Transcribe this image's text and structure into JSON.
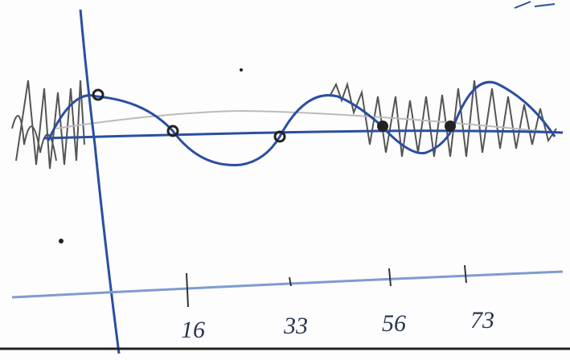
{
  "axis": {
    "labels": [
      "16",
      "33",
      "56",
      "73"
    ]
  }
}
